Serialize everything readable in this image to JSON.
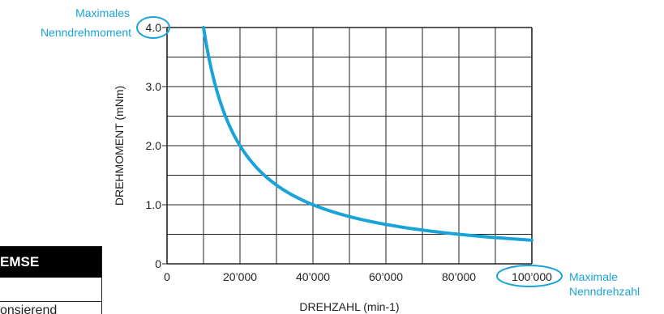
{
  "chart_data": {
    "type": "line",
    "title": "",
    "xlabel": "DREHZAHL (min-1)",
    "ylabel": "DREHMOMENT (mNm)",
    "xlim": [
      0,
      100000
    ],
    "ylim": [
      0,
      4.0
    ],
    "x_tick_labels": [
      "0",
      "20’000",
      "40’000",
      "60’000",
      "80’000",
      "100’000"
    ],
    "x_tick_values": [
      0,
      20000,
      40000,
      60000,
      80000,
      100000
    ],
    "y_tick_labels": [
      "0",
      "1.0",
      "2.0",
      "3.0",
      "4.0"
    ],
    "y_tick_values": [
      0,
      1.0,
      2.0,
      3.0,
      4.0
    ],
    "grid": true,
    "series": [
      {
        "name": "",
        "color": "#1aa3d9",
        "x": [
          10000,
          12000,
          15000,
          20000,
          25000,
          30000,
          35000,
          40000,
          50000,
          60000,
          70000,
          80000,
          90000,
          100000
        ],
        "y": [
          4.0,
          3.33,
          2.67,
          2.0,
          1.6,
          1.33,
          1.14,
          1.0,
          0.8,
          0.67,
          0.57,
          0.5,
          0.44,
          0.4
        ]
      }
    ],
    "annotations": [
      {
        "text_line1": "Maximales",
        "text_line2": "Nenndrehmoment",
        "target": "4.0",
        "color": "#1aa3d9"
      },
      {
        "text_line1": "Maximale",
        "text_line2": "Nenndrehzahl",
        "target": "100’000",
        "color": "#1aa3d9"
      }
    ]
  },
  "legend": {
    "header": "EMSE",
    "row1": "",
    "row2": "onsierend"
  },
  "colors": {
    "curve": "#1aa3d9",
    "grid": "#222222",
    "text": "#222222"
  }
}
